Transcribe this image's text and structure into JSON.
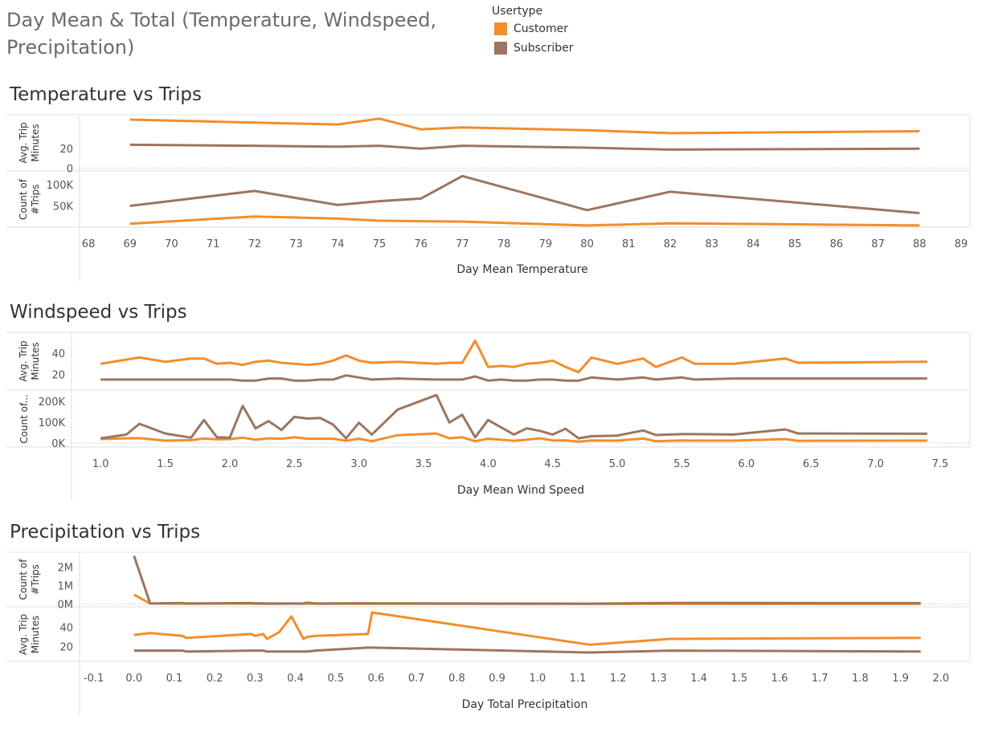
{
  "title": "Day Mean & Total (Temperature, Windspeed, Precipitation)",
  "legend": {
    "title": "Usertype",
    "items": [
      {
        "label": "Customer",
        "color": "#f28e2b"
      },
      {
        "label": "Subscriber",
        "color": "#9c7660"
      }
    ]
  },
  "chart_data": [
    {
      "type": "line",
      "title": "Temperature vs Trips",
      "xlabel": "Day Mean Temperature",
      "xlim": [
        68,
        89
      ],
      "x_ticks": [
        68,
        69,
        70,
        71,
        72,
        73,
        74,
        75,
        76,
        77,
        78,
        79,
        80,
        81,
        82,
        83,
        84,
        85,
        86,
        87,
        88,
        89
      ],
      "panes": [
        {
          "ylabel": [
            "Avg. Trip",
            "Minutes"
          ],
          "ylim": [
            -3,
            55
          ],
          "y_ticks": [
            {
              "v": 0,
              "label": "0"
            },
            {
              "v": 20,
              "label": "20"
            }
          ],
          "x": [
            69,
            72,
            74,
            75,
            76,
            77,
            80,
            82,
            88
          ],
          "series": [
            {
              "name": "Customer",
              "values": [
                50,
                47,
                45,
                51,
                40,
                42,
                39,
                36,
                38
              ]
            },
            {
              "name": "Subscriber",
              "values": [
                24,
                23,
                22,
                23,
                20,
                23,
                21,
                19,
                20
              ]
            }
          ]
        },
        {
          "ylabel": [
            "Count of",
            "#Trips"
          ],
          "ylim": [
            0,
            130000
          ],
          "y_ticks": [
            {
              "v": 50000,
              "label": "50K"
            },
            {
              "v": 100000,
              "label": "100K"
            }
          ],
          "x": [
            69,
            72,
            74,
            75,
            76,
            77,
            80,
            82,
            88
          ],
          "series": [
            {
              "name": "Customer",
              "values": [
                8000,
                25000,
                20000,
                15000,
                14000,
                13000,
                4000,
                9000,
                4000
              ]
            },
            {
              "name": "Subscriber",
              "values": [
                50000,
                85000,
                52000,
                61000,
                67000,
                120000,
                40000,
                83000,
                33000
              ]
            }
          ]
        }
      ]
    },
    {
      "type": "line",
      "title": "Windspeed vs Trips",
      "xlabel": "Day Mean Wind Speed",
      "xlim": [
        0.7,
        7.6
      ],
      "x_ticks": [
        {
          "v": 1.0,
          "label": "1.0"
        },
        {
          "v": 1.5,
          "label": "1.5"
        },
        {
          "v": 2.0,
          "label": "2.0"
        },
        {
          "v": 2.5,
          "label": "2.5"
        },
        {
          "v": 3.0,
          "label": "3.0"
        },
        {
          "v": 3.5,
          "label": "3.5"
        },
        {
          "v": 4.0,
          "label": "4.0"
        },
        {
          "v": 4.5,
          "label": "4.5"
        },
        {
          "v": 5.0,
          "label": "5.0"
        },
        {
          "v": 5.5,
          "label": "5.5"
        },
        {
          "v": 6.0,
          "label": "6.0"
        },
        {
          "v": 6.5,
          "label": "6.5"
        },
        {
          "v": 7.0,
          "label": "7.0"
        },
        {
          "v": 7.5,
          "label": "7.5"
        }
      ],
      "panes": [
        {
          "ylabel": [
            "Avg. Trip",
            "Minutes"
          ],
          "ylim": [
            5,
            60
          ],
          "y_ticks": [
            {
              "v": 20,
              "label": "20"
            },
            {
              "v": 40,
              "label": "40"
            }
          ],
          "x": [
            1.0,
            1.2,
            1.3,
            1.5,
            1.7,
            1.8,
            1.9,
            2.0,
            2.1,
            2.2,
            2.3,
            2.4,
            2.5,
            2.6,
            2.7,
            2.8,
            2.9,
            3.0,
            3.1,
            3.3,
            3.6,
            3.7,
            3.8,
            3.9,
            4.0,
            4.1,
            4.2,
            4.3,
            4.4,
            4.5,
            4.6,
            4.7,
            4.8,
            5.0,
            5.2,
            5.3,
            5.5,
            5.6,
            5.9,
            6.3,
            6.4,
            7.4
          ],
          "series": [
            {
              "name": "Customer",
              "values": [
                30,
                34,
                36,
                32,
                35,
                35,
                30,
                31,
                29,
                32,
                33,
                31,
                30,
                29,
                30,
                33,
                38,
                33,
                31,
                32,
                30,
                31,
                31,
                52,
                27,
                28,
                27,
                30,
                31,
                33,
                27,
                22,
                36,
                30,
                35,
                27,
                36,
                30,
                30,
                35,
                31,
                32
              ]
            },
            {
              "name": "Subscriber",
              "values": [
                15,
                15,
                15,
                15,
                15,
                15,
                15,
                15,
                14,
                14,
                16,
                16,
                14,
                14,
                15,
                15,
                19,
                17,
                15,
                16,
                15,
                15,
                15,
                18,
                14,
                15,
                14,
                14,
                15,
                15,
                14,
                14,
                17,
                15,
                17,
                15,
                17,
                15,
                16,
                16,
                16,
                16
              ]
            }
          ]
        },
        {
          "ylabel": [
            "Count of..."
          ],
          "ylim": [
            -20000,
            250000
          ],
          "y_ticks": [
            {
              "v": 0,
              "label": "0K"
            },
            {
              "v": 100000,
              "label": "100K"
            },
            {
              "v": 200000,
              "label": "200K"
            }
          ],
          "x": [
            1.0,
            1.2,
            1.3,
            1.5,
            1.7,
            1.8,
            1.9,
            2.0,
            2.1,
            2.2,
            2.3,
            2.4,
            2.5,
            2.6,
            2.7,
            2.8,
            2.9,
            3.0,
            3.1,
            3.3,
            3.6,
            3.7,
            3.8,
            3.9,
            4.0,
            4.1,
            4.2,
            4.3,
            4.4,
            4.5,
            4.6,
            4.7,
            4.8,
            5.0,
            5.2,
            5.3,
            5.5,
            5.6,
            5.9,
            6.3,
            6.4,
            7.4
          ],
          "series": [
            {
              "name": "Customer",
              "values": [
                18000,
                22000,
                23000,
                11000,
                13000,
                21000,
                17000,
                18000,
                25000,
                15000,
                22000,
                20000,
                27000,
                20000,
                20000,
                20000,
                10000,
                20000,
                8000,
                37000,
                45000,
                22000,
                27000,
                8000,
                20000,
                15000,
                10000,
                16000,
                22000,
                12000,
                12000,
                6000,
                12000,
                11000,
                21000,
                8000,
                12000,
                11000,
                11000,
                18000,
                10000,
                11000
              ]
            },
            {
              "name": "Subscriber",
              "values": [
                22000,
                40000,
                92000,
                45000,
                25000,
                110000,
                27000,
                25000,
                178000,
                70000,
                105000,
                62000,
                125000,
                117000,
                120000,
                88000,
                22000,
                97000,
                40000,
                160000,
                230000,
                98000,
                135000,
                27000,
                110000,
                75000,
                40000,
                70000,
                58000,
                40000,
                68000,
                22000,
                32000,
                35000,
                60000,
                38000,
                42000,
                42000,
                40000,
                65000,
                45000,
                44000
              ]
            }
          ]
        }
      ]
    },
    {
      "type": "line",
      "title": "Precipitation vs Trips",
      "xlabel": "Day Total Precipitation",
      "xlim": [
        -0.135,
        2.08
      ],
      "x_ticks": [
        {
          "v": -0.1,
          "label": "-0.1"
        },
        {
          "v": 0.0,
          "label": "0.0"
        },
        {
          "v": 0.1,
          "label": "0.1"
        },
        {
          "v": 0.2,
          "label": "0.2"
        },
        {
          "v": 0.3,
          "label": "0.3"
        },
        {
          "v": 0.4,
          "label": "0.4"
        },
        {
          "v": 0.5,
          "label": "0.5"
        },
        {
          "v": 0.6,
          "label": "0.6"
        },
        {
          "v": 0.7,
          "label": "0.7"
        },
        {
          "v": 0.8,
          "label": "0.8"
        },
        {
          "v": 0.9,
          "label": "0.9"
        },
        {
          "v": 1.0,
          "label": "1.0"
        },
        {
          "v": 1.1,
          "label": "1.1"
        },
        {
          "v": 1.2,
          "label": "1.2"
        },
        {
          "v": 1.3,
          "label": "1.3"
        },
        {
          "v": 1.4,
          "label": "1.4"
        },
        {
          "v": 1.5,
          "label": "1.5"
        },
        {
          "v": 1.6,
          "label": "1.6"
        },
        {
          "v": 1.7,
          "label": "1.7"
        },
        {
          "v": 1.8,
          "label": "1.8"
        },
        {
          "v": 1.9,
          "label": "1.9"
        },
        {
          "v": 2.0,
          "label": "2.0"
        }
      ],
      "panes": [
        {
          "ylabel": [
            "Count of",
            "#Trips"
          ],
          "ylim": [
            -150000,
            2800000
          ],
          "y_ticks": [
            {
              "v": 0,
              "label": "0M"
            },
            {
              "v": 1000000,
              "label": "1M"
            },
            {
              "v": 2000000,
              "label": "2M"
            }
          ],
          "x": [
            0.0,
            0.04,
            0.12,
            0.13,
            0.29,
            0.3,
            0.32,
            0.33,
            0.36,
            0.39,
            0.42,
            0.43,
            0.45,
            0.58,
            0.59,
            1.13,
            1.33,
            1.95
          ],
          "series": [
            {
              "name": "Customer",
              "values": [
                500000,
                30000,
                20000,
                15000,
                30000,
                15000,
                20000,
                10000,
                12000,
                20000,
                15000,
                18000,
                12000,
                20000,
                15000,
                5000,
                10000,
                8000
              ]
            },
            {
              "name": "Subscriber",
              "values": [
                2600000,
                30000,
                60000,
                30000,
                50000,
                35000,
                40000,
                30000,
                30000,
                30000,
                30000,
                70000,
                30000,
                40000,
                35000,
                20000,
                60000,
                50000
              ]
            }
          ]
        },
        {
          "ylabel": [
            "Avg. Trip",
            "Minutes"
          ],
          "ylim": [
            5,
            60
          ],
          "y_ticks": [
            {
              "v": 20,
              "label": "20"
            },
            {
              "v": 40,
              "label": "40"
            }
          ],
          "x": [
            0.0,
            0.04,
            0.12,
            0.13,
            0.29,
            0.3,
            0.32,
            0.33,
            0.36,
            0.39,
            0.42,
            0.43,
            0.45,
            0.58,
            0.59,
            1.13,
            1.33,
            1.95
          ],
          "series": [
            {
              "name": "Customer",
              "values": [
                32,
                34,
                31,
                29,
                33,
                31,
                33,
                28,
                35,
                51,
                28,
                30,
                31,
                33,
                55,
                22,
                28,
                29
              ]
            },
            {
              "name": "Subscriber",
              "values": [
                16,
                16,
                16,
                15,
                16,
                16,
                16,
                15,
                15,
                15,
                15,
                15,
                16,
                19,
                19,
                14,
                16,
                15
              ]
            }
          ]
        }
      ]
    }
  ]
}
